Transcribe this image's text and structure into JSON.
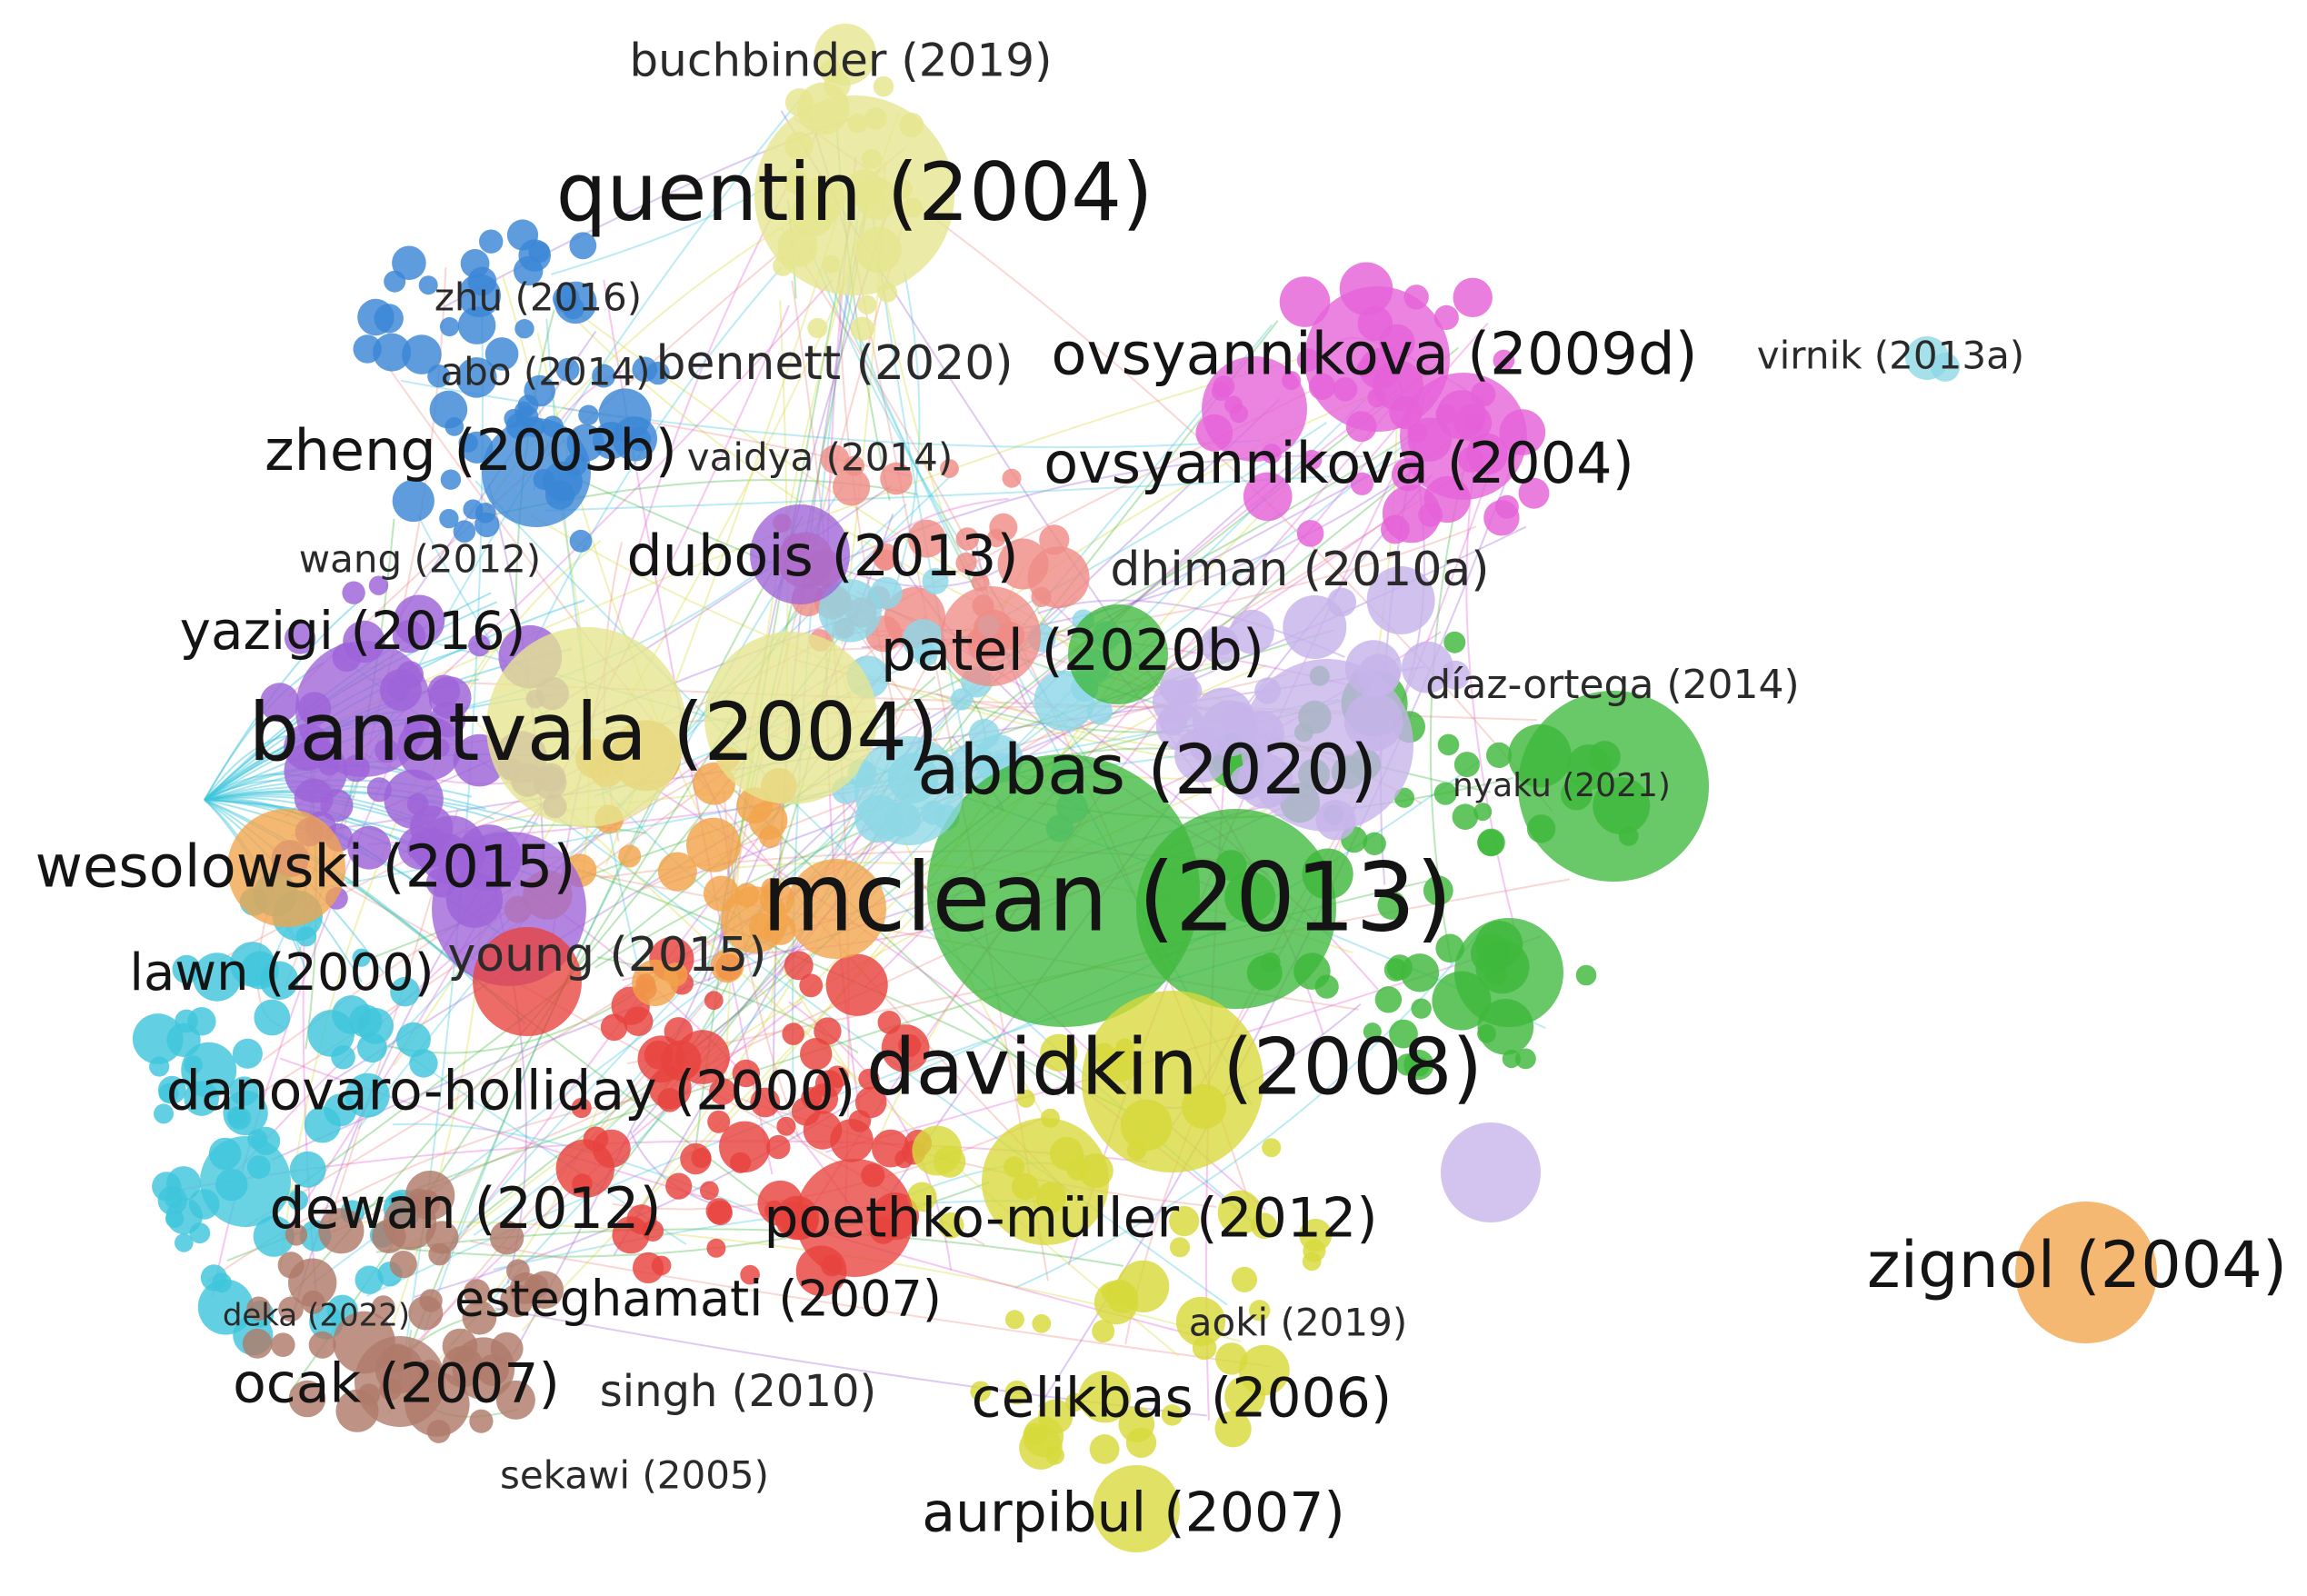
{
  "title": "",
  "palette": {
    "yellow": "#d7d93a",
    "paleyellow": "#e6e58e",
    "blue": "#3a86d6",
    "magenta": "#e562d8",
    "green": "#3fb83c",
    "purple": "#9d63d8",
    "lavender": "#c6b3ea",
    "orange": "#f2a44b",
    "cyan": "#3fc6dc",
    "red": "#e8433e",
    "salmon": "#ef8c86",
    "brown": "#b07a6a",
    "lightcyan": "#8dd7e6"
  },
  "labels": [
    {
      "id": "buchbinder-2019",
      "text": "buchbinder (2019)"
    },
    {
      "id": "quentin-2004",
      "text": "quentin (2004)"
    },
    {
      "id": "zhu-2016",
      "text": "zhu (2016)"
    },
    {
      "id": "abo-2014",
      "text": "abo (2014)"
    },
    {
      "id": "bennett-2020",
      "text": "bennett (2020)"
    },
    {
      "id": "ovsyannikova-2009d",
      "text": "ovsyannikova (2009d)"
    },
    {
      "id": "virnik-2013a",
      "text": "virnik (2013a)"
    },
    {
      "id": "zheng-2003b",
      "text": "zheng (2003b)"
    },
    {
      "id": "vaidya-2014",
      "text": "vaidya (2014)"
    },
    {
      "id": "ovsyannikova-2004",
      "text": "ovsyannikova (2004)"
    },
    {
      "id": "wang-2012",
      "text": "wang (2012)"
    },
    {
      "id": "dubois-2013",
      "text": "dubois (2013)"
    },
    {
      "id": "dhiman-2010a",
      "text": "dhiman (2010a)"
    },
    {
      "id": "yazigi-2016",
      "text": "yazigi (2016)"
    },
    {
      "id": "patel-2020b",
      "text": "patel (2020b)"
    },
    {
      "id": "diaz-ortega-2014",
      "text": "díaz-ortega (2014)"
    },
    {
      "id": "banatvala-2004",
      "text": "banatvala (2004)"
    },
    {
      "id": "abbas-2020",
      "text": "abbas (2020)"
    },
    {
      "id": "nyaku-2021",
      "text": "nyaku (2021)"
    },
    {
      "id": "wesolowski-2015",
      "text": "wesolowski (2015)"
    },
    {
      "id": "mclean-2013",
      "text": "mclean (2013)"
    },
    {
      "id": "lawn-2000",
      "text": "lawn (2000)"
    },
    {
      "id": "young-2015",
      "text": "young (2015)"
    },
    {
      "id": "davidkin-2008",
      "text": "davidkin (2008)"
    },
    {
      "id": "danovaro-holliday-2000",
      "text": "danovaro-holliday (2000)"
    },
    {
      "id": "dewan-2012",
      "text": "dewan (2012)"
    },
    {
      "id": "poethko-muller-2012",
      "text": "poethko-müller (2012)"
    },
    {
      "id": "zignol-2004",
      "text": "zignol (2004)"
    },
    {
      "id": "deka-2022",
      "text": "deka (2022)"
    },
    {
      "id": "esteghamati-2007",
      "text": "esteghamati (2007)"
    },
    {
      "id": "aoki-2019",
      "text": "aoki (2019)"
    },
    {
      "id": "ocak-2007",
      "text": "ocak (2007)"
    },
    {
      "id": "singh-2010",
      "text": "singh (2010)"
    },
    {
      "id": "celikbas-2006",
      "text": "celikbas (2006)"
    },
    {
      "id": "sekawi-2005",
      "text": "sekawi (2005)"
    },
    {
      "id": "aurpibul-2007",
      "text": "aurpibul (2007)"
    }
  ]
}
